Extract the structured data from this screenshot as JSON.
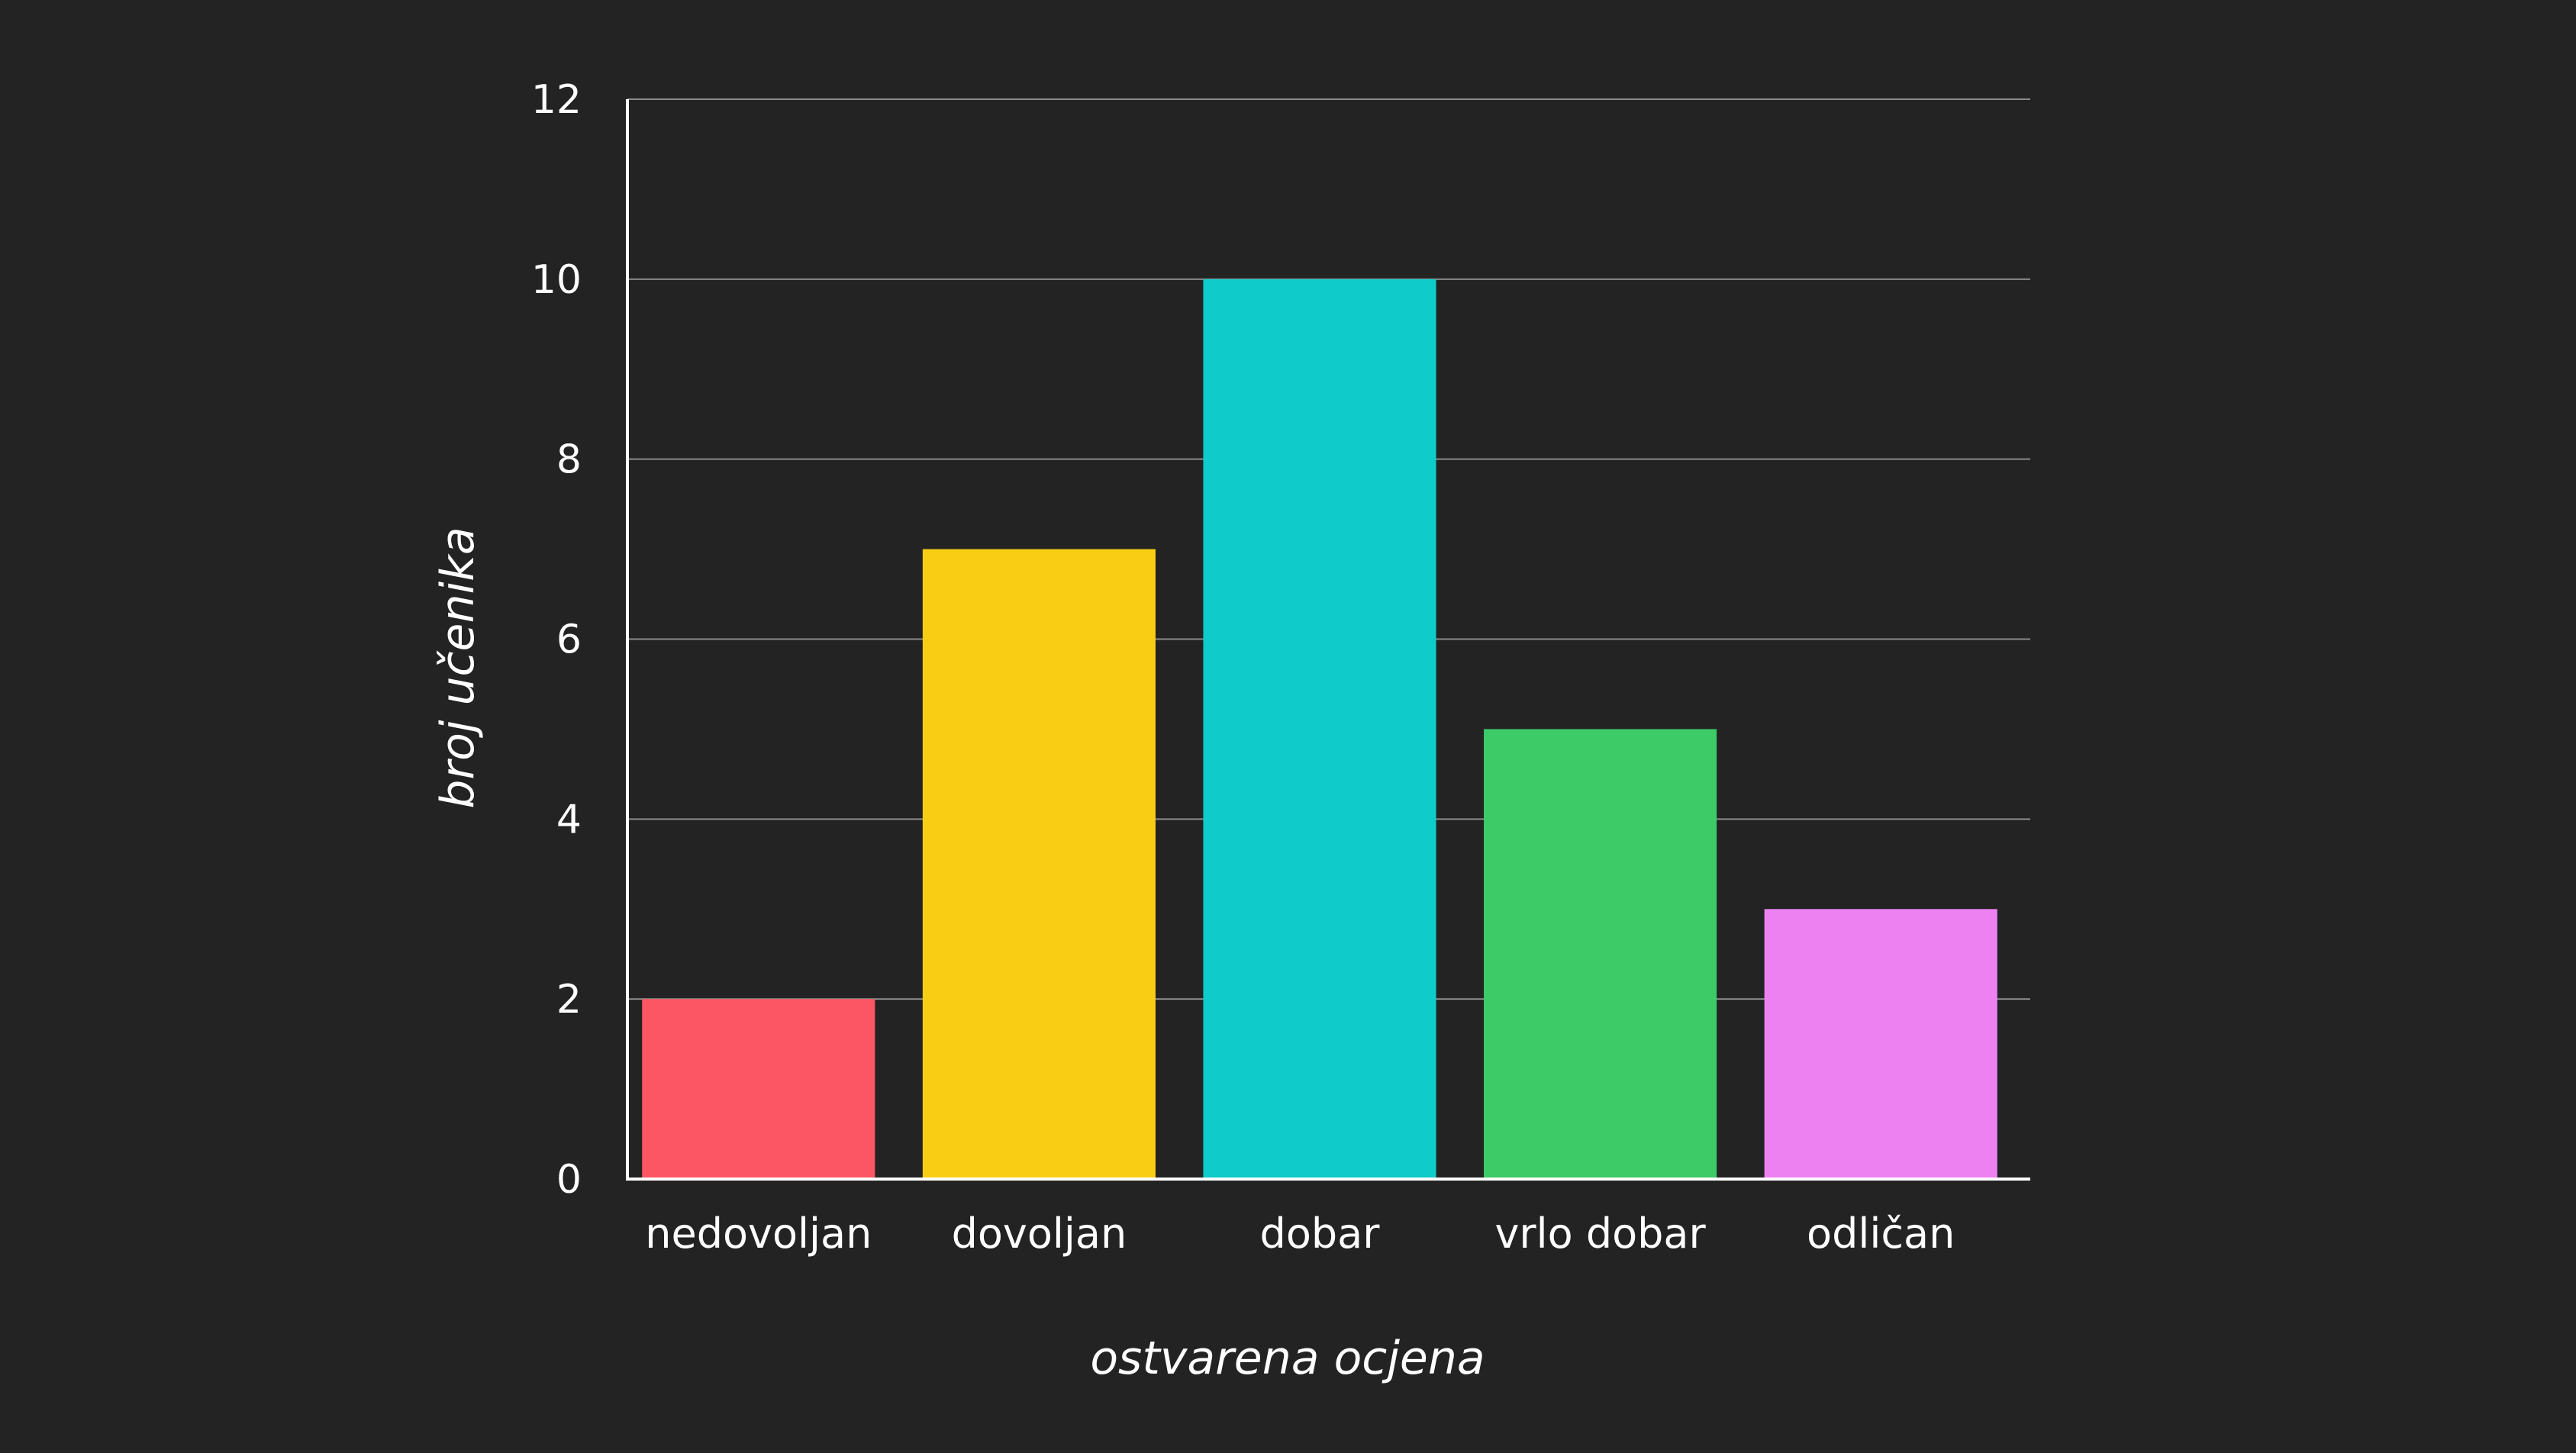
{
  "chart_data": {
    "type": "bar",
    "categories": [
      "nedovoljan",
      "dovoljan",
      "dobar",
      "vrlo dobar",
      "odličan"
    ],
    "values": [
      2,
      7,
      10,
      5,
      3
    ],
    "colors": [
      "#fc5664",
      "#facd15",
      "#0fcbca",
      "#3ccb67",
      "#ed81f2"
    ],
    "xlabel": "ostvarena ocjena",
    "ylabel": "broj učenika",
    "ylim": [
      0,
      12
    ],
    "yticks": [
      0,
      2,
      4,
      6,
      8,
      10,
      12
    ],
    "grid": true,
    "background": "#232323",
    "gridColor": "#8a8a8a",
    "axisColor": "#ffffff"
  }
}
